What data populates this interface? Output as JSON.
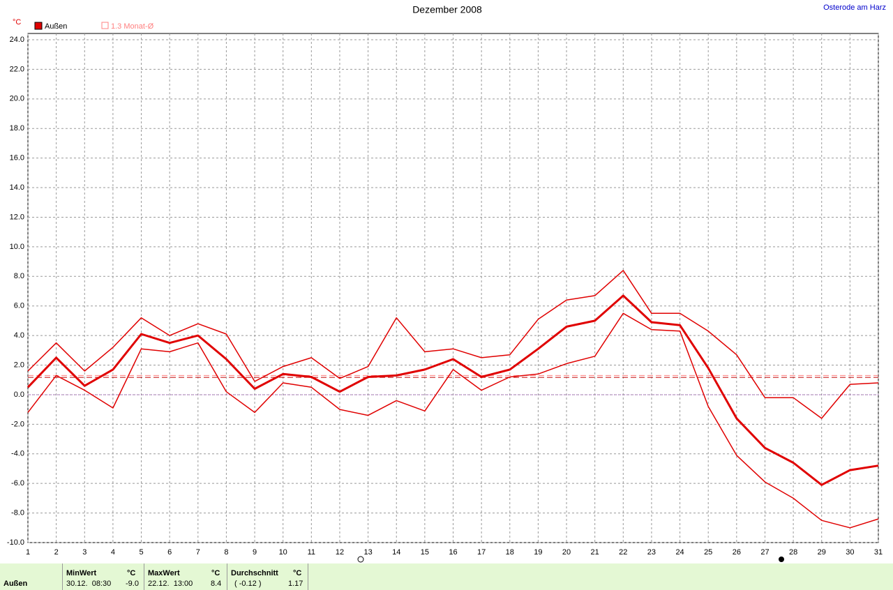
{
  "chart_data": {
    "type": "line",
    "title": "Dezember 2008",
    "location": "Osterode am Harz",
    "unit_label": "°C",
    "x": [
      1,
      2,
      3,
      4,
      5,
      6,
      7,
      8,
      9,
      10,
      11,
      12,
      13,
      14,
      15,
      16,
      17,
      18,
      19,
      20,
      21,
      22,
      23,
      24,
      25,
      26,
      27,
      28,
      29,
      30,
      31
    ],
    "xlim": [
      1,
      31
    ],
    "xticks": [
      1,
      2,
      3,
      4,
      5,
      6,
      7,
      8,
      9,
      10,
      11,
      12,
      13,
      14,
      15,
      16,
      17,
      18,
      19,
      20,
      21,
      22,
      23,
      24,
      25,
      26,
      27,
      28,
      29,
      30,
      31
    ],
    "ylim": [
      -10,
      24
    ],
    "yticks": [
      {
        "value": -10,
        "label": "-10.0"
      },
      {
        "value": -8,
        "label": "-8.0"
      },
      {
        "value": -6,
        "label": "-6.0"
      },
      {
        "value": -4,
        "label": "-4.0"
      },
      {
        "value": -2,
        "label": "-2.0"
      },
      {
        "value": 0,
        "label": "0.0"
      },
      {
        "value": 2,
        "label": "2.0"
      },
      {
        "value": 4,
        "label": "4.0"
      },
      {
        "value": 6,
        "label": "6.0"
      },
      {
        "value": 8,
        "label": "8.0"
      },
      {
        "value": 10,
        "label": "10.0"
      },
      {
        "value": 12,
        "label": "12.0"
      },
      {
        "value": 14,
        "label": "14.0"
      },
      {
        "value": 16,
        "label": "16.0"
      },
      {
        "value": 18,
        "label": "18.0"
      },
      {
        "value": 20,
        "label": "20.0"
      },
      {
        "value": 22,
        "label": "22.0"
      },
      {
        "value": 24,
        "label": "24.0"
      }
    ],
    "grid": true,
    "series": [
      {
        "name": "Außen",
        "color": "#e00000",
        "width": 3,
        "values": [
          0.5,
          2.5,
          0.6,
          1.7,
          4.1,
          3.5,
          4.0,
          2.4,
          0.4,
          1.4,
          1.2,
          0.2,
          1.2,
          1.3,
          1.7,
          2.4,
          1.2,
          1.7,
          3.1,
          4.6,
          5.0,
          6.7,
          4.9,
          4.7,
          1.8,
          -1.6,
          -3.6,
          -4.6,
          -6.1,
          -5.1,
          -4.8
        ]
      },
      {
        "color": "#e00000",
        "width": 1.5,
        "values": [
          1.6,
          3.5,
          1.6,
          3.2,
          5.2,
          4.0,
          4.8,
          4.1,
          0.9,
          1.9,
          2.5,
          1.1,
          1.9,
          5.2,
          2.9,
          3.1,
          2.5,
          2.7,
          5.1,
          6.4,
          6.7,
          8.4,
          5.5,
          5.5,
          4.3,
          2.7,
          -0.2,
          -0.2,
          -1.6,
          0.7,
          0.8
        ]
      },
      {
        "color": "#e00000",
        "width": 1.5,
        "values": [
          -1.2,
          1.3,
          0.3,
          -0.9,
          3.1,
          2.9,
          3.5,
          0.2,
          -1.2,
          0.8,
          0.5,
          -1.0,
          -1.4,
          -0.4,
          -1.1,
          1.7,
          0.3,
          1.2,
          1.4,
          2.1,
          2.6,
          5.5,
          4.4,
          4.3,
          -0.8,
          -4.1,
          -5.9,
          -7.0,
          -8.5,
          -9.0,
          -8.4
        ]
      }
    ],
    "reference_lines": [
      {
        "name": "1.3 Monat-Ø",
        "value": 1.3,
        "color": "#ff8080"
      },
      {
        "value": 1.17,
        "color": "#c00000"
      },
      {
        "value": 0,
        "color": "#a040c0"
      }
    ],
    "stats": {
      "row_label": "Außen",
      "min": {
        "title": "MinWert",
        "unit": "°C",
        "when": "30.12.  08:30",
        "value": "-9.0"
      },
      "max": {
        "title": "MaxWert",
        "unit": "°C",
        "when": "22.12.  13:00",
        "value": "8.4"
      },
      "avg": {
        "title": "Durchschnitt",
        "unit": "°C",
        "when": "( -0.12 )",
        "value": "1.17"
      }
    }
  }
}
